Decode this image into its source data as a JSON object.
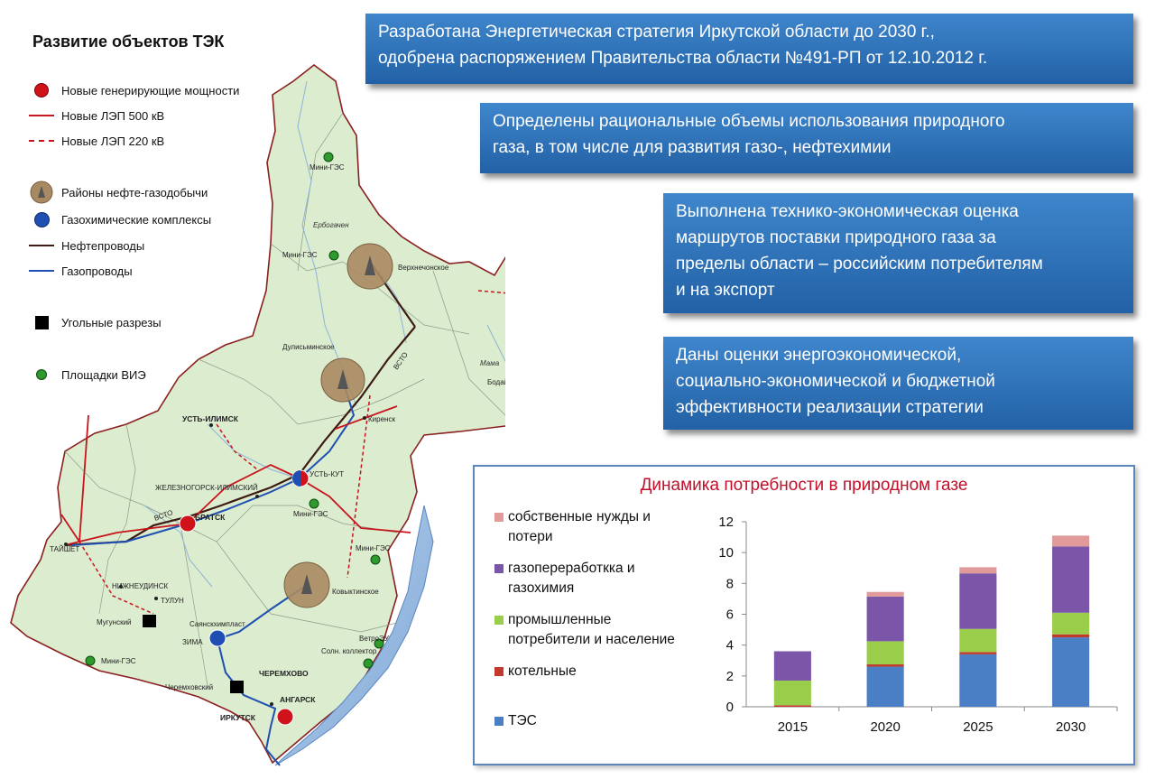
{
  "map": {
    "title": "Развитие объектов ТЭК",
    "legend": [
      {
        "icon": "red-circle-icon",
        "label": "Новые генерирующие мощности"
      },
      {
        "icon": "red-solid-line-icon",
        "label": "Новые ЛЭП 500 кВ"
      },
      {
        "icon": "red-dashed-line-icon",
        "label": "Новые ЛЭП 220 кВ"
      },
      {
        "icon": "triangle-circle-icon",
        "label": "Районы нефте-газодобычи"
      },
      {
        "icon": "blue-circle-icon",
        "label": "Газохимические комплексы"
      },
      {
        "icon": "brown-line-icon",
        "label": "Нефтепроводы"
      },
      {
        "icon": "blue-line-icon",
        "label": "Газопроводы"
      },
      {
        "icon": "black-square-icon",
        "label": "Угольные разрезы"
      },
      {
        "icon": "green-dot-icon",
        "label": "Площадки ВИЭ"
      }
    ],
    "labels": {
      "mini_ges_1": "Мини-ГЭС",
      "erbogachen": "Ербогачен",
      "mini_ges_2": "Мини-ГЭС",
      "verkhnechonskoe": "Верхнечонское",
      "dulisminskoe": "Дулисьминское",
      "vsto_1": "ВСТО",
      "mama": "Мама",
      "bodaibo": "Бодайбо",
      "kirensk": "Киренск",
      "ust_ilimsk": "УСТЬ-ИЛИМСК",
      "ust_kut": "УСТЬ-КУТ",
      "zheleznogorsk": "ЖЕЛЕЗНОГОРСК-ИЛИМСКИЙ",
      "mini_ges_3": "Мини-ГЭС",
      "vsto_2": "ВСТО",
      "bratsk": "БРАТСК",
      "taishet": "ТАЙШЕТ",
      "mini_ges_4": "Мини-ГЭС",
      "nizhneudinsk": "НИЖНЕУДИНСК",
      "kovyktinskoe": "Ковыктинское",
      "tulun": "ТУЛУН",
      "mugunsky": "Мугунский",
      "sayanskkhimplast": "Саянскхимпласт",
      "zima": "ЗИМА",
      "vetroeu": "ВетроЭУ",
      "sol_kollektor": "Солн. коллектор",
      "mini_ges_5": "Мини-ГЭС",
      "cheremkhovo": "ЧЕРЕМХОВО",
      "cheremkhovsky": "Черемховский",
      "angarsk": "АНГАРСК",
      "irkutsk": "ИРКУТСК"
    }
  },
  "callouts": [
    "Разработана Энергетическая стратегия Иркутской области до 2030 г.,\nодобрена распоряжением Правительства области №491-РП от 12.10.2012 г.",
    "Определены рациональные объемы использования природного\nгаза, в том числе для развития газо-, нефтехимии",
    "Выполнена технико-экономическая оценка\nмаршрутов поставки природного газа за\nпределы области – российским потребителям\nи на экспорт",
    "Даны оценки энергоэкономической,\nсоциально-экономической и бюджетной\nэффективности реализации стратегии"
  ],
  "colors": {
    "callout_blue": "#2f73b9",
    "map_fill": "#dbeccf",
    "red": "#d0121b",
    "blue": "#1f4fb3",
    "brown": "#3d1a12",
    "tes": "#4a7ec5",
    "boiler": "#c0392b",
    "industry": "#9acd4a",
    "gaschem": "#7a55a8",
    "own_needs": "#e09a9a"
  },
  "chart_data": {
    "type": "bar",
    "stacked": true,
    "title": "Динамика потребности в природном газе",
    "categories": [
      "2015",
      "2020",
      "2025",
      "2030"
    ],
    "ylim": [
      0,
      12
    ],
    "yticks": [
      "0",
      "2",
      "4",
      "6",
      "8",
      "10",
      "12"
    ],
    "grid": false,
    "legend_position": "left",
    "series": [
      {
        "name": "ТЭС",
        "color": "#4a7ec5",
        "values": [
          0.0,
          2.6,
          3.4,
          4.5
        ]
      },
      {
        "name": "котельные",
        "color": "#c0392b",
        "values": [
          0.1,
          0.15,
          0.15,
          0.2
        ]
      },
      {
        "name": "промышленные\nпотребители и население",
        "color": "#9acd4a",
        "values": [
          1.6,
          1.5,
          1.5,
          1.4
        ]
      },
      {
        "name": "газопереработкка и\nгазохимия",
        "color": "#7a55a8",
        "values": [
          1.9,
          2.9,
          3.6,
          4.3
        ]
      },
      {
        "name": "собственные нужды и\nпотери",
        "color": "#e09a9a",
        "values": [
          0.0,
          0.3,
          0.4,
          0.7
        ]
      }
    ]
  }
}
